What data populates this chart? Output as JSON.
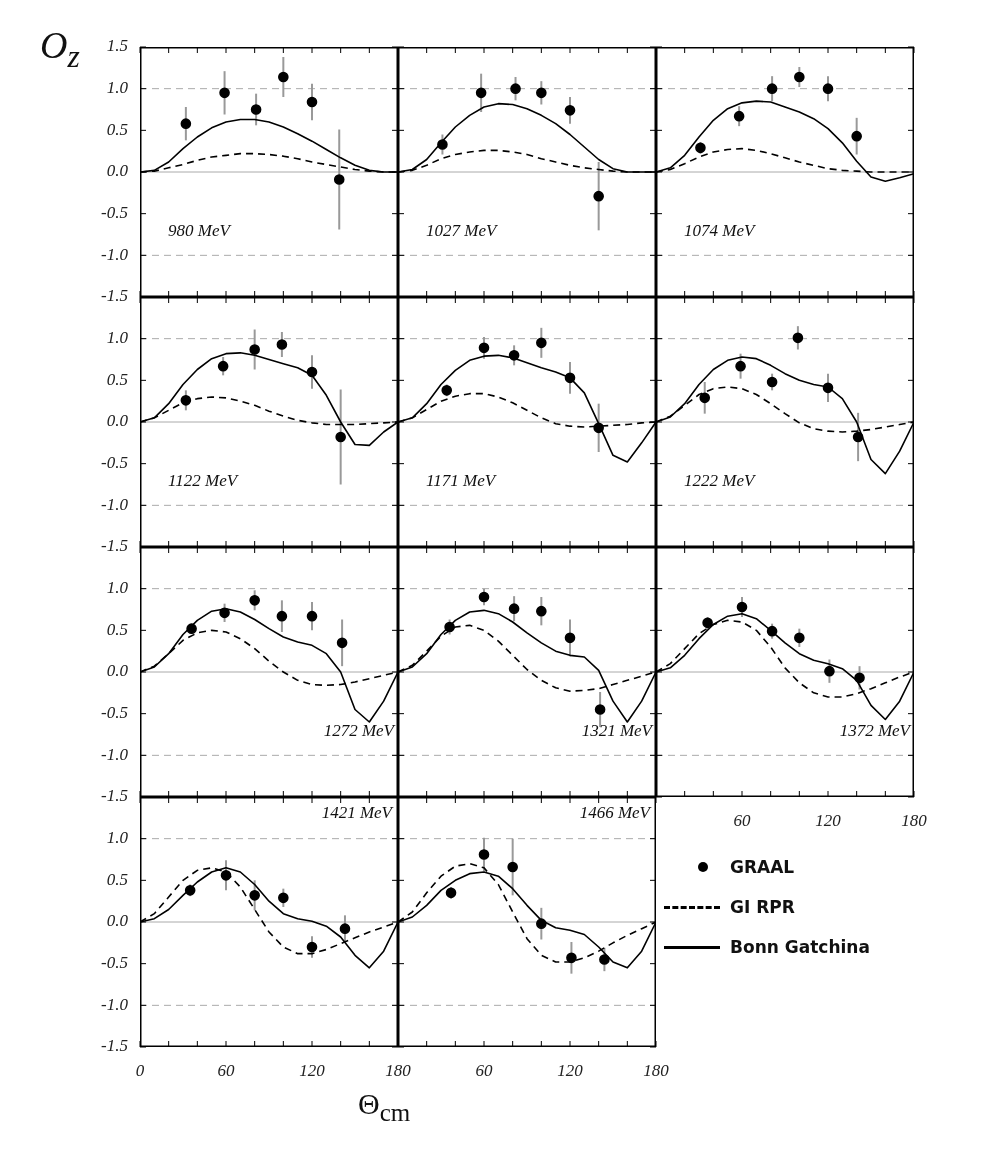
{
  "chart_data": [
    {
      "type": "line",
      "title": "980 MeV",
      "ylabel": "O$_{z}$",
      "tick_labels": "y",
      "x": [
        0,
        10,
        20,
        30,
        40,
        50,
        60,
        70,
        80,
        90,
        100,
        110,
        120,
        130,
        140,
        150,
        160,
        170,
        180
      ],
      "xlim": [
        0,
        180
      ],
      "ylim": [
        -1.5,
        1.5
      ],
      "xticks": [
        {
          "value": 0,
          "label": null
        },
        {
          "value": 20,
          "label": null
        },
        {
          "value": 40,
          "label": null
        },
        {
          "value": 60,
          "label": null
        },
        {
          "value": 80,
          "label": null
        },
        {
          "value": 100,
          "label": null
        },
        {
          "value": 120,
          "label": null
        },
        {
          "value": 140,
          "label": null
        },
        {
          "value": 160,
          "label": null
        },
        {
          "value": 180,
          "label": null
        }
      ],
      "yticks": [
        {
          "value": -1.5,
          "label": "-1.5"
        },
        {
          "value": -1,
          "label": "-1.0"
        },
        {
          "value": -0.5,
          "label": "-0.5"
        },
        {
          "value": 0,
          "label": "0.0"
        },
        {
          "value": 0.5,
          "label": "0.5"
        },
        {
          "value": 1,
          "label": "1.0"
        },
        {
          "value": 1.5,
          "label": "1.5"
        }
      ],
      "ref_lines": [
        {
          "axis": "y",
          "value": 1,
          "color": "#aaaaaa",
          "line_style": "dashed"
        },
        {
          "axis": "y",
          "value": 0,
          "color": "#aaaaaa",
          "line_style": "solid"
        },
        {
          "axis": "y",
          "value": -1,
          "color": "#aaaaaa",
          "line_style": "dashed"
        }
      ],
      "series": [
        {
          "type": "scatter",
          "color": "#000000",
          "marker": "circle",
          "x": [
            32,
            59,
            81,
            100,
            120,
            139
          ],
          "values": [
            0.58,
            0.95,
            0.75,
            1.14,
            0.84,
            -0.09
          ],
          "errors": [
            0.2,
            0.26,
            0.19,
            0.24,
            0.22,
            0.6
          ]
        },
        {
          "type": "line",
          "color": "#000000",
          "line_style": "dashed",
          "values": [
            0,
            0.01,
            0.05,
            0.09,
            0.14,
            0.18,
            0.2,
            0.22,
            0.22,
            0.21,
            0.19,
            0.16,
            0.12,
            0.09,
            0.06,
            0.03,
            0.01,
            0,
            0
          ]
        },
        {
          "type": "line",
          "color": "#000000",
          "line_style": "solid",
          "values": [
            0,
            0.02,
            0.12,
            0.28,
            0.42,
            0.53,
            0.6,
            0.63,
            0.63,
            0.6,
            0.54,
            0.46,
            0.37,
            0.27,
            0.17,
            0.08,
            0.02,
            0,
            0
          ]
        }
      ]
    },
    {
      "type": "line",
      "title": "1027 MeV",
      "tick_labels": false,
      "x": [
        0,
        10,
        20,
        30,
        40,
        50,
        60,
        70,
        80,
        90,
        100,
        110,
        120,
        130,
        140,
        150,
        160,
        170,
        180
      ],
      "xlim": [
        0,
        180
      ],
      "ylim": [
        -1.5,
        1.5
      ],
      "xticks": [
        {
          "value": 0,
          "label": null
        },
        {
          "value": 20,
          "label": null
        },
        {
          "value": 40,
          "label": null
        },
        {
          "value": 60,
          "label": null
        },
        {
          "value": 80,
          "label": null
        },
        {
          "value": 100,
          "label": null
        },
        {
          "value": 120,
          "label": null
        },
        {
          "value": 140,
          "label": null
        },
        {
          "value": 160,
          "label": null
        },
        {
          "value": 180,
          "label": null
        }
      ],
      "yticks": [
        {
          "value": -1.5,
          "label": null
        },
        {
          "value": -1,
          "label": null
        },
        {
          "value": -0.5,
          "label": null
        },
        {
          "value": 0,
          "label": null
        },
        {
          "value": 0.5,
          "label": null
        },
        {
          "value": 1,
          "label": null
        },
        {
          "value": 1.5,
          "label": null
        }
      ],
      "ref_lines": [
        {
          "axis": "y",
          "value": 1,
          "color": "#aaaaaa",
          "line_style": "dashed"
        },
        {
          "axis": "y",
          "value": 0,
          "color": "#aaaaaa",
          "line_style": "solid"
        },
        {
          "axis": "y",
          "value": -1,
          "color": "#aaaaaa",
          "line_style": "dashed"
        }
      ],
      "series": [
        {
          "type": "scatter",
          "color": "#000000",
          "marker": "circle",
          "x": [
            31,
            58,
            82,
            100,
            120,
            140
          ],
          "values": [
            0.33,
            0.95,
            1.0,
            0.95,
            0.74,
            -0.29
          ],
          "errors": [
            0.12,
            0.23,
            0.14,
            0.14,
            0.16,
            0.41
          ]
        },
        {
          "type": "line",
          "color": "#000000",
          "line_style": "dashed",
          "values": [
            0,
            0.02,
            0.08,
            0.16,
            0.21,
            0.24,
            0.26,
            0.26,
            0.24,
            0.21,
            0.16,
            0.12,
            0.08,
            0.05,
            0.03,
            0.01,
            0,
            0,
            0
          ]
        },
        {
          "type": "line",
          "color": "#000000",
          "line_style": "solid",
          "values": [
            0,
            0.03,
            0.15,
            0.35,
            0.54,
            0.68,
            0.78,
            0.82,
            0.81,
            0.76,
            0.68,
            0.58,
            0.45,
            0.3,
            0.15,
            0.04,
            0,
            0,
            0
          ]
        }
      ]
    },
    {
      "type": "line",
      "title": "1074 MeV",
      "tick_labels": false,
      "x": [
        0,
        10,
        20,
        30,
        40,
        50,
        60,
        70,
        80,
        90,
        100,
        110,
        120,
        130,
        140,
        150,
        160,
        170,
        180
      ],
      "xlim": [
        0,
        180
      ],
      "ylim": [
        -1.5,
        1.5
      ],
      "xticks": [
        {
          "value": 0,
          "label": null
        },
        {
          "value": 20,
          "label": null
        },
        {
          "value": 40,
          "label": null
        },
        {
          "value": 60,
          "label": null
        },
        {
          "value": 80,
          "label": null
        },
        {
          "value": 100,
          "label": null
        },
        {
          "value": 120,
          "label": null
        },
        {
          "value": 140,
          "label": null
        },
        {
          "value": 160,
          "label": null
        },
        {
          "value": 180,
          "label": null
        }
      ],
      "yticks": [
        {
          "value": -1.5,
          "label": null
        },
        {
          "value": -1,
          "label": null
        },
        {
          "value": -0.5,
          "label": null
        },
        {
          "value": 0,
          "label": null
        },
        {
          "value": 0.5,
          "label": null
        },
        {
          "value": 1,
          "label": null
        },
        {
          "value": 1.5,
          "label": null
        }
      ],
      "ref_lines": [
        {
          "axis": "y",
          "value": 1,
          "color": "#aaaaaa",
          "line_style": "dashed"
        },
        {
          "axis": "y",
          "value": 0,
          "color": "#aaaaaa",
          "line_style": "solid"
        },
        {
          "axis": "y",
          "value": -1,
          "color": "#aaaaaa",
          "line_style": "dashed"
        }
      ],
      "series": [
        {
          "type": "scatter",
          "color": "#000000",
          "marker": "circle",
          "x": [
            31,
            58,
            81,
            100,
            120,
            140
          ],
          "values": [
            0.29,
            0.67,
            1.0,
            1.14,
            1.0,
            0.43
          ],
          "errors": [
            0.07,
            0.12,
            0.15,
            0.12,
            0.15,
            0.22
          ]
        },
        {
          "type": "line",
          "color": "#000000",
          "line_style": "dashed",
          "values": [
            0,
            0.03,
            0.1,
            0.18,
            0.24,
            0.27,
            0.28,
            0.26,
            0.22,
            0.17,
            0.12,
            0.08,
            0.04,
            0.02,
            0.01,
            0,
            0,
            0,
            0
          ]
        },
        {
          "type": "line",
          "color": "#000000",
          "line_style": "solid",
          "values": [
            0,
            0.05,
            0.2,
            0.42,
            0.62,
            0.76,
            0.83,
            0.85,
            0.84,
            0.78,
            0.72,
            0.64,
            0.52,
            0.35,
            0.13,
            -0.06,
            -0.11,
            -0.07,
            -0.02
          ]
        }
      ]
    },
    {
      "type": "line",
      "title": "1122 MeV",
      "tick_labels": "y",
      "x": [
        0,
        10,
        20,
        30,
        40,
        50,
        60,
        70,
        80,
        90,
        100,
        110,
        120,
        130,
        140,
        150,
        160,
        170,
        180
      ],
      "xlim": [
        0,
        180
      ],
      "ylim": [
        -1.5,
        1.5
      ],
      "xticks": [
        {
          "value": 0,
          "label": null
        },
        {
          "value": 20,
          "label": null
        },
        {
          "value": 40,
          "label": null
        },
        {
          "value": 60,
          "label": null
        },
        {
          "value": 80,
          "label": null
        },
        {
          "value": 100,
          "label": null
        },
        {
          "value": 120,
          "label": null
        },
        {
          "value": 140,
          "label": null
        },
        {
          "value": 160,
          "label": null
        },
        {
          "value": 180,
          "label": null
        }
      ],
      "yticks": [
        {
          "value": -1.5,
          "label": "-1.5"
        },
        {
          "value": -1,
          "label": "-1.0"
        },
        {
          "value": -0.5,
          "label": "-0.5"
        },
        {
          "value": 0,
          "label": "0.0"
        },
        {
          "value": 0.5,
          "label": "0.5"
        },
        {
          "value": 1,
          "label": "1.0"
        },
        {
          "value": 1.5,
          "label": null
        }
      ],
      "ref_lines": [
        {
          "axis": "y",
          "value": 1,
          "color": "#aaaaaa",
          "line_style": "dashed"
        },
        {
          "axis": "y",
          "value": 0,
          "color": "#aaaaaa",
          "line_style": "solid"
        },
        {
          "axis": "y",
          "value": -1,
          "color": "#aaaaaa",
          "line_style": "dashed"
        }
      ],
      "series": [
        {
          "type": "scatter",
          "color": "#000000",
          "marker": "circle",
          "x": [
            32,
            58,
            80,
            99,
            120,
            140
          ],
          "values": [
            0.26,
            0.67,
            0.87,
            0.93,
            0.6,
            -0.18
          ],
          "errors": [
            0.12,
            0.11,
            0.24,
            0.15,
            0.2,
            0.57
          ]
        },
        {
          "type": "line",
          "color": "#000000",
          "line_style": "dashed",
          "values": [
            0,
            0.05,
            0.14,
            0.23,
            0.28,
            0.3,
            0.29,
            0.25,
            0.2,
            0.13,
            0.07,
            0.02,
            -0.01,
            -0.03,
            -0.03,
            -0.03,
            -0.02,
            -0.01,
            0
          ]
        },
        {
          "type": "line",
          "color": "#000000",
          "line_style": "solid",
          "values": [
            0,
            0.05,
            0.22,
            0.45,
            0.63,
            0.76,
            0.82,
            0.83,
            0.8,
            0.75,
            0.7,
            0.65,
            0.56,
            0.32,
            0,
            -0.27,
            -0.28,
            -0.12,
            0
          ]
        }
      ]
    },
    {
      "type": "line",
      "title": "1171 MeV",
      "tick_labels": false,
      "x": [
        0,
        10,
        20,
        30,
        40,
        50,
        60,
        70,
        80,
        90,
        100,
        110,
        120,
        130,
        140,
        150,
        160,
        170,
        180
      ],
      "xlim": [
        0,
        180
      ],
      "ylim": [
        -1.5,
        1.5
      ],
      "xticks": [
        {
          "value": 0,
          "label": null
        },
        {
          "value": 20,
          "label": null
        },
        {
          "value": 40,
          "label": null
        },
        {
          "value": 60,
          "label": null
        },
        {
          "value": 80,
          "label": null
        },
        {
          "value": 100,
          "label": null
        },
        {
          "value": 120,
          "label": null
        },
        {
          "value": 140,
          "label": null
        },
        {
          "value": 160,
          "label": null
        },
        {
          "value": 180,
          "label": null
        }
      ],
      "yticks": [
        {
          "value": -1.5,
          "label": null
        },
        {
          "value": -1,
          "label": null
        },
        {
          "value": -0.5,
          "label": null
        },
        {
          "value": 0,
          "label": null
        },
        {
          "value": 0.5,
          "label": null
        },
        {
          "value": 1,
          "label": null
        },
        {
          "value": 1.5,
          "label": null
        }
      ],
      "ref_lines": [
        {
          "axis": "y",
          "value": 1,
          "color": "#aaaaaa",
          "line_style": "dashed"
        },
        {
          "axis": "y",
          "value": 0,
          "color": "#aaaaaa",
          "line_style": "solid"
        },
        {
          "axis": "y",
          "value": -1,
          "color": "#aaaaaa",
          "line_style": "dashed"
        }
      ],
      "series": [
        {
          "type": "scatter",
          "color": "#000000",
          "marker": "circle",
          "x": [
            34,
            60,
            81,
            100,
            120,
            140
          ],
          "values": [
            0.38,
            0.89,
            0.8,
            0.95,
            0.53,
            -0.07
          ],
          "errors": [
            0.07,
            0.13,
            0.12,
            0.18,
            0.19,
            0.29
          ]
        },
        {
          "type": "line",
          "color": "#000000",
          "line_style": "dashed",
          "values": [
            0,
            0.05,
            0.15,
            0.25,
            0.31,
            0.34,
            0.34,
            0.3,
            0.23,
            0.14,
            0.05,
            -0.02,
            -0.05,
            -0.06,
            -0.05,
            -0.04,
            -0.03,
            -0.01,
            0
          ]
        },
        {
          "type": "line",
          "color": "#000000",
          "line_style": "solid",
          "values": [
            0,
            0.05,
            0.22,
            0.45,
            0.62,
            0.74,
            0.79,
            0.8,
            0.77,
            0.71,
            0.65,
            0.6,
            0.53,
            0.35,
            -0.02,
            -0.4,
            -0.48,
            -0.25,
            0
          ]
        }
      ]
    },
    {
      "type": "line",
      "title": "1222 MeV",
      "tick_labels": false,
      "x": [
        0,
        10,
        20,
        30,
        40,
        50,
        60,
        70,
        80,
        90,
        100,
        110,
        120,
        130,
        140,
        150,
        160,
        170,
        180
      ],
      "xlim": [
        0,
        180
      ],
      "ylim": [
        -1.5,
        1.5
      ],
      "xticks": [
        {
          "value": 0,
          "label": null
        },
        {
          "value": 20,
          "label": null
        },
        {
          "value": 40,
          "label": null
        },
        {
          "value": 60,
          "label": null
        },
        {
          "value": 80,
          "label": null
        },
        {
          "value": 100,
          "label": null
        },
        {
          "value": 120,
          "label": null
        },
        {
          "value": 140,
          "label": null
        },
        {
          "value": 160,
          "label": null
        },
        {
          "value": 180,
          "label": null
        }
      ],
      "yticks": [
        {
          "value": -1.5,
          "label": null
        },
        {
          "value": -1,
          "label": null
        },
        {
          "value": -0.5,
          "label": null
        },
        {
          "value": 0,
          "label": null
        },
        {
          "value": 0.5,
          "label": null
        },
        {
          "value": 1,
          "label": null
        },
        {
          "value": 1.5,
          "label": null
        }
      ],
      "ref_lines": [
        {
          "axis": "y",
          "value": 1,
          "color": "#aaaaaa",
          "line_style": "dashed"
        },
        {
          "axis": "y",
          "value": 0,
          "color": "#aaaaaa",
          "line_style": "solid"
        },
        {
          "axis": "y",
          "value": -1,
          "color": "#aaaaaa",
          "line_style": "dashed"
        }
      ],
      "series": [
        {
          "type": "scatter",
          "color": "#000000",
          "marker": "circle",
          "x": [
            34,
            59,
            81,
            99,
            120,
            141
          ],
          "values": [
            0.29,
            0.67,
            0.48,
            1.01,
            0.41,
            -0.18
          ],
          "errors": [
            0.19,
            0.15,
            0.1,
            0.14,
            0.17,
            0.29
          ]
        },
        {
          "type": "line",
          "color": "#000000",
          "line_style": "dashed",
          "values": [
            0,
            0.07,
            0.2,
            0.33,
            0.4,
            0.42,
            0.4,
            0.33,
            0.22,
            0.1,
            -0.01,
            -0.08,
            -0.11,
            -0.12,
            -0.11,
            -0.09,
            -0.06,
            -0.03,
            0
          ]
        },
        {
          "type": "line",
          "color": "#000000",
          "line_style": "solid",
          "values": [
            0,
            0.06,
            0.22,
            0.45,
            0.63,
            0.74,
            0.78,
            0.76,
            0.68,
            0.58,
            0.5,
            0.45,
            0.42,
            0.28,
            0,
            -0.45,
            -0.62,
            -0.35,
            0
          ]
        }
      ]
    },
    {
      "type": "line",
      "title": "1272 MeV",
      "tick_labels": "y",
      "x": [
        0,
        10,
        20,
        30,
        40,
        50,
        60,
        70,
        80,
        90,
        100,
        110,
        120,
        130,
        140,
        150,
        160,
        170,
        180
      ],
      "xlim": [
        0,
        180
      ],
      "ylim": [
        -1.5,
        1.5
      ],
      "xticks": [
        {
          "value": 0,
          "label": null
        },
        {
          "value": 20,
          "label": null
        },
        {
          "value": 40,
          "label": null
        },
        {
          "value": 60,
          "label": null
        },
        {
          "value": 80,
          "label": null
        },
        {
          "value": 100,
          "label": null
        },
        {
          "value": 120,
          "label": null
        },
        {
          "value": 140,
          "label": null
        },
        {
          "value": 160,
          "label": null
        },
        {
          "value": 180,
          "label": null
        }
      ],
      "yticks": [
        {
          "value": -1.5,
          "label": "-1.5"
        },
        {
          "value": -1,
          "label": "-1.0"
        },
        {
          "value": -0.5,
          "label": "-0.5"
        },
        {
          "value": 0,
          "label": "0.0"
        },
        {
          "value": 0.5,
          "label": "0.5"
        },
        {
          "value": 1,
          "label": "1.0"
        },
        {
          "value": 1.5,
          "label": null
        }
      ],
      "ref_lines": [
        {
          "axis": "y",
          "value": 1,
          "color": "#aaaaaa",
          "line_style": "dashed"
        },
        {
          "axis": "y",
          "value": 0,
          "color": "#aaaaaa",
          "line_style": "solid"
        },
        {
          "axis": "y",
          "value": -1,
          "color": "#aaaaaa",
          "line_style": "dashed"
        }
      ],
      "series": [
        {
          "type": "scatter",
          "color": "#000000",
          "marker": "circle",
          "x": [
            36,
            59,
            80,
            99,
            120,
            141
          ],
          "values": [
            0.52,
            0.71,
            0.86,
            0.67,
            0.67,
            0.35
          ],
          "errors": [
            0.06,
            0.11,
            0.12,
            0.19,
            0.17,
            0.28
          ]
        },
        {
          "type": "line",
          "color": "#000000",
          "line_style": "dashed",
          "values": [
            0,
            0.07,
            0.22,
            0.38,
            0.47,
            0.5,
            0.48,
            0.4,
            0.28,
            0.13,
            0,
            -0.1,
            -0.15,
            -0.16,
            -0.15,
            -0.12,
            -0.08,
            -0.04,
            0
          ]
        },
        {
          "type": "line",
          "color": "#000000",
          "line_style": "solid",
          "values": [
            0,
            0.06,
            0.22,
            0.45,
            0.62,
            0.73,
            0.76,
            0.72,
            0.63,
            0.52,
            0.42,
            0.36,
            0.32,
            0.22,
            0,
            -0.45,
            -0.6,
            -0.35,
            0
          ]
        }
      ]
    },
    {
      "type": "line",
      "title": "1321 MeV",
      "tick_labels": false,
      "x": [
        0,
        10,
        20,
        30,
        40,
        50,
        60,
        70,
        80,
        90,
        100,
        110,
        120,
        130,
        140,
        150,
        160,
        170,
        180
      ],
      "xlim": [
        0,
        180
      ],
      "ylim": [
        -1.5,
        1.5
      ],
      "xticks": [
        {
          "value": 0,
          "label": null
        },
        {
          "value": 20,
          "label": null
        },
        {
          "value": 40,
          "label": null
        },
        {
          "value": 60,
          "label": null
        },
        {
          "value": 80,
          "label": null
        },
        {
          "value": 100,
          "label": null
        },
        {
          "value": 120,
          "label": null
        },
        {
          "value": 140,
          "label": null
        },
        {
          "value": 160,
          "label": null
        },
        {
          "value": 180,
          "label": null
        }
      ],
      "yticks": [
        {
          "value": -1.5,
          "label": null
        },
        {
          "value": -1,
          "label": null
        },
        {
          "value": -0.5,
          "label": null
        },
        {
          "value": 0,
          "label": null
        },
        {
          "value": 0.5,
          "label": null
        },
        {
          "value": 1,
          "label": null
        },
        {
          "value": 1.5,
          "label": null
        }
      ],
      "ref_lines": [
        {
          "axis": "y",
          "value": 1,
          "color": "#aaaaaa",
          "line_style": "dashed"
        },
        {
          "axis": "y",
          "value": 0,
          "color": "#aaaaaa",
          "line_style": "solid"
        },
        {
          "axis": "y",
          "value": -1,
          "color": "#aaaaaa",
          "line_style": "dashed"
        }
      ],
      "series": [
        {
          "type": "scatter",
          "color": "#000000",
          "marker": "circle",
          "x": [
            36,
            60,
            81,
            100,
            120,
            141
          ],
          "values": [
            0.54,
            0.9,
            0.76,
            0.73,
            0.41,
            -0.45
          ],
          "errors": [
            0.09,
            0.1,
            0.15,
            0.17,
            0.22,
            0.21
          ]
        },
        {
          "type": "line",
          "color": "#000000",
          "line_style": "dashed",
          "values": [
            0,
            0.08,
            0.25,
            0.43,
            0.54,
            0.56,
            0.5,
            0.37,
            0.2,
            0.03,
            -0.1,
            -0.19,
            -0.23,
            -0.22,
            -0.2,
            -0.15,
            -0.1,
            -0.05,
            0
          ]
        },
        {
          "type": "line",
          "color": "#000000",
          "line_style": "solid",
          "values": [
            0,
            0.06,
            0.22,
            0.45,
            0.62,
            0.72,
            0.74,
            0.7,
            0.6,
            0.47,
            0.35,
            0.25,
            0.2,
            0.18,
            0.02,
            -0.35,
            -0.6,
            -0.35,
            0
          ]
        }
      ]
    },
    {
      "type": "line",
      "title": "1372 MeV",
      "tick_labels": "x",
      "x": [
        0,
        10,
        20,
        30,
        40,
        50,
        60,
        70,
        80,
        90,
        100,
        110,
        120,
        130,
        140,
        150,
        160,
        170,
        180
      ],
      "xlim": [
        0,
        180
      ],
      "ylim": [
        -1.5,
        1.5
      ],
      "xticks": [
        {
          "value": 0,
          "label": null
        },
        {
          "value": 20,
          "label": null
        },
        {
          "value": 40,
          "label": null
        },
        60,
        {
          "value": 80,
          "label": null
        },
        {
          "value": 100,
          "label": null
        },
        120,
        {
          "value": 140,
          "label": null
        },
        {
          "value": 160,
          "label": null
        },
        180
      ],
      "yticks": [
        {
          "value": -1.5,
          "label": null
        },
        {
          "value": -1,
          "label": null
        },
        {
          "value": -0.5,
          "label": null
        },
        {
          "value": 0,
          "label": null
        },
        {
          "value": 0.5,
          "label": null
        },
        {
          "value": 1,
          "label": null
        },
        {
          "value": 1.5,
          "label": null
        }
      ],
      "ref_lines": [
        {
          "axis": "y",
          "value": 1,
          "color": "#aaaaaa",
          "line_style": "dashed"
        },
        {
          "axis": "y",
          "value": 0,
          "color": "#aaaaaa",
          "line_style": "solid"
        },
        {
          "axis": "y",
          "value": -1,
          "color": "#aaaaaa",
          "line_style": "dashed"
        }
      ],
      "series": [
        {
          "type": "scatter",
          "color": "#000000",
          "marker": "circle",
          "x": [
            36,
            60,
            81,
            100,
            121,
            142
          ],
          "values": [
            0.59,
            0.78,
            0.49,
            0.41,
            0.01,
            -0.07
          ],
          "errors": [
            0.07,
            0.12,
            0.09,
            0.11,
            0.14,
            0.14
          ]
        },
        {
          "type": "line",
          "color": "#000000",
          "line_style": "dashed",
          "values": [
            0,
            0.1,
            0.28,
            0.46,
            0.57,
            0.62,
            0.6,
            0.5,
            0.3,
            0.05,
            -0.13,
            -0.25,
            -0.3,
            -0.3,
            -0.26,
            -0.2,
            -0.13,
            -0.06,
            0
          ]
        },
        {
          "type": "line",
          "color": "#000000",
          "line_style": "solid",
          "values": [
            0,
            0.05,
            0.2,
            0.4,
            0.57,
            0.67,
            0.7,
            0.64,
            0.5,
            0.35,
            0.22,
            0.14,
            0.1,
            0.04,
            -0.1,
            -0.4,
            -0.57,
            -0.35,
            0
          ]
        }
      ]
    },
    {
      "type": "line",
      "title": "1421 MeV",
      "x": [
        0,
        10,
        20,
        30,
        40,
        50,
        60,
        70,
        80,
        90,
        100,
        110,
        120,
        130,
        140,
        150,
        160,
        170,
        180
      ],
      "xlim": [
        0,
        180
      ],
      "ylim": [
        -1.5,
        1.5
      ],
      "xticks": [
        0,
        {
          "value": 20,
          "label": null
        },
        {
          "value": 40,
          "label": null
        },
        60,
        {
          "value": 80,
          "label": null
        },
        {
          "value": 100,
          "label": null
        },
        120,
        {
          "value": 140,
          "label": null
        },
        {
          "value": 160,
          "label": null
        },
        180
      ],
      "yticks": [
        {
          "value": -1.5,
          "label": "-1.5"
        },
        {
          "value": -1,
          "label": "-1.0"
        },
        {
          "value": -0.5,
          "label": "-0.5"
        },
        {
          "value": 0,
          "label": "0.0"
        },
        {
          "value": 0.5,
          "label": "0.5"
        },
        {
          "value": 1,
          "label": "1.0"
        },
        {
          "value": 1.5,
          "label": null
        }
      ],
      "ref_lines": [
        {
          "axis": "y",
          "value": 1,
          "color": "#aaaaaa",
          "line_style": "dashed"
        },
        {
          "axis": "y",
          "value": 0,
          "color": "#aaaaaa",
          "line_style": "solid"
        },
        {
          "axis": "y",
          "value": -1,
          "color": "#aaaaaa",
          "line_style": "dashed"
        }
      ],
      "series": [
        {
          "type": "scatter",
          "color": "#000000",
          "marker": "circle",
          "x": [
            35,
            60,
            80,
            100,
            120,
            143
          ],
          "values": [
            0.38,
            0.56,
            0.32,
            0.29,
            -0.3,
            -0.08
          ],
          "errors": [
            0.07,
            0.18,
            0.18,
            0.11,
            0.13,
            0.16
          ]
        },
        {
          "type": "line",
          "color": "#000000",
          "line_style": "dashed",
          "values": [
            0,
            0.1,
            0.3,
            0.5,
            0.62,
            0.65,
            0.6,
            0.42,
            0.15,
            -0.12,
            -0.3,
            -0.38,
            -0.38,
            -0.33,
            -0.26,
            -0.19,
            -0.12,
            -0.06,
            0
          ]
        },
        {
          "type": "line",
          "color": "#000000",
          "line_style": "solid",
          "values": [
            0,
            0.04,
            0.15,
            0.32,
            0.48,
            0.6,
            0.65,
            0.6,
            0.45,
            0.25,
            0.1,
            0.04,
            0.01,
            -0.05,
            -0.18,
            -0.4,
            -0.55,
            -0.35,
            0
          ]
        }
      ]
    },
    {
      "type": "line",
      "title": "1466 MeV",
      "xlabel": "Θ$_{cm}$",
      "tick_labels": "x",
      "legend": "right",
      "x": [
        0,
        10,
        20,
        30,
        40,
        50,
        60,
        70,
        80,
        90,
        100,
        110,
        120,
        130,
        140,
        150,
        160,
        170,
        180
      ],
      "xlim": [
        0,
        180
      ],
      "ylim": [
        -1.5,
        1.5
      ],
      "xticks": [
        {
          "value": 0,
          "label": null
        },
        {
          "value": 20,
          "label": null
        },
        {
          "value": 40,
          "label": null
        },
        60,
        {
          "value": 80,
          "label": null
        },
        {
          "value": 100,
          "label": null
        },
        120,
        {
          "value": 140,
          "label": null
        },
        {
          "value": 160,
          "label": null
        },
        180
      ],
      "yticks": [
        {
          "value": -1.5,
          "label": null
        },
        {
          "value": -1,
          "label": null
        },
        {
          "value": -0.5,
          "label": null
        },
        {
          "value": 0,
          "label": null
        },
        {
          "value": 0.5,
          "label": null
        },
        {
          "value": 1,
          "label": null
        },
        {
          "value": 1.5,
          "label": null
        }
      ],
      "ref_lines": [
        {
          "axis": "y",
          "value": 1,
          "color": "#aaaaaa",
          "line_style": "dashed"
        },
        {
          "axis": "y",
          "value": 0,
          "color": "#aaaaaa",
          "line_style": "solid"
        },
        {
          "axis": "y",
          "value": -1,
          "color": "#aaaaaa",
          "line_style": "dashed"
        }
      ],
      "series": [
        {
          "type": "scatter",
          "name": "GRAAL",
          "color": "#000000",
          "marker": "circle",
          "x": [
            37,
            60,
            80,
            100,
            121,
            144
          ],
          "values": [
            0.35,
            0.81,
            0.66,
            -0.02,
            -0.43,
            -0.45
          ],
          "errors": [
            0.07,
            0.2,
            0.34,
            0.19,
            0.19,
            0.14
          ]
        },
        {
          "type": "line",
          "name": "GI RPR",
          "color": "#000000",
          "line_style": "dashed",
          "values": [
            0,
            0.12,
            0.35,
            0.55,
            0.67,
            0.7,
            0.65,
            0.45,
            0.12,
            -0.2,
            -0.4,
            -0.48,
            -0.48,
            -0.43,
            -0.35,
            -0.25,
            -0.16,
            -0.08,
            0
          ]
        },
        {
          "type": "line",
          "name": "Bonn Gatchina",
          "color": "#000000",
          "line_style": "solid",
          "values": [
            0,
            0.06,
            0.2,
            0.38,
            0.5,
            0.58,
            0.6,
            0.55,
            0.4,
            0.2,
            0.02,
            -0.07,
            -0.1,
            -0.15,
            -0.3,
            -0.48,
            -0.55,
            -0.35,
            0
          ]
        }
      ]
    }
  ]
}
